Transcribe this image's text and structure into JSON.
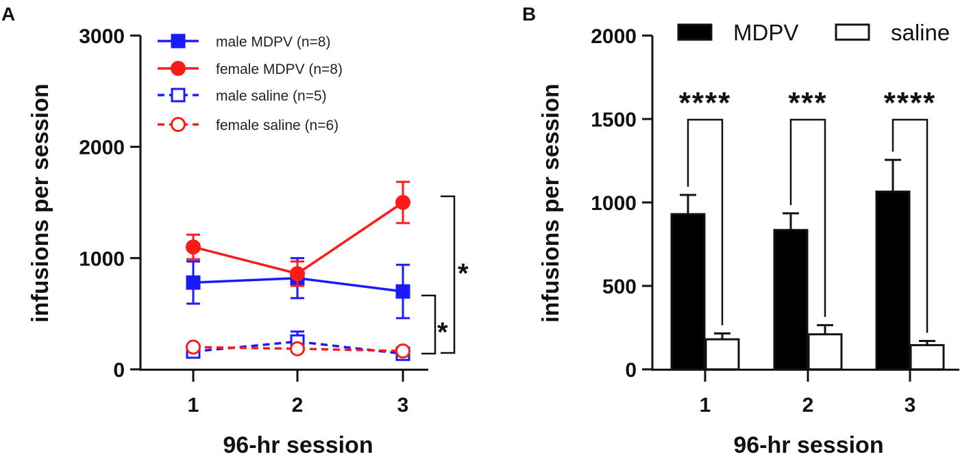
{
  "chart_data": [
    {
      "type": "line",
      "panel_label": "A",
      "xlabel": "96-hr session",
      "ylabel": "infusions per session",
      "categories": [
        "1",
        "2",
        "3"
      ],
      "yticks": [
        "0",
        "1000",
        "2000",
        "3000"
      ],
      "ylim": [
        0,
        3000
      ],
      "series": [
        {
          "name": "male MDPV (n=8)",
          "color": "#1a1aff",
          "marker": "square-filled",
          "dashed": false,
          "values": [
            780,
            820,
            700
          ],
          "errors": [
            190,
            180,
            240
          ]
        },
        {
          "name": "female MDPV (n=8)",
          "color": "#ff1a1a",
          "marker": "circle-filled",
          "dashed": false,
          "values": [
            1100,
            860,
            1500
          ],
          "errors": [
            110,
            110,
            185
          ]
        },
        {
          "name": "male saline (n=5)",
          "color": "#1a1aff",
          "marker": "square-open",
          "dashed": true,
          "values": [
            160,
            250,
            140
          ],
          "errors": [
            30,
            90,
            25
          ]
        },
        {
          "name": "female saline (n=6)",
          "color": "#ff1a1a",
          "marker": "circle-open",
          "dashed": true,
          "values": [
            200,
            185,
            165
          ],
          "errors": [
            20,
            20,
            15
          ]
        }
      ],
      "annotations": [
        "*",
        "*"
      ]
    },
    {
      "type": "bar",
      "panel_label": "B",
      "xlabel": "96-hr session",
      "ylabel": "infusions per session",
      "categories": [
        "1",
        "2",
        "3"
      ],
      "yticks": [
        "0",
        "500",
        "1000",
        "1500",
        "2000"
      ],
      "ylim": [
        0,
        2000
      ],
      "series": [
        {
          "name": "MDPV",
          "color": "#000000",
          "values": [
            930,
            835,
            1065
          ],
          "errors": [
            115,
            100,
            190
          ]
        },
        {
          "name": "saline",
          "color": "#ffffff",
          "values": [
            180,
            210,
            145
          ],
          "errors": [
            35,
            55,
            25
          ]
        }
      ],
      "significance": [
        "****",
        "***",
        "****"
      ]
    }
  ]
}
